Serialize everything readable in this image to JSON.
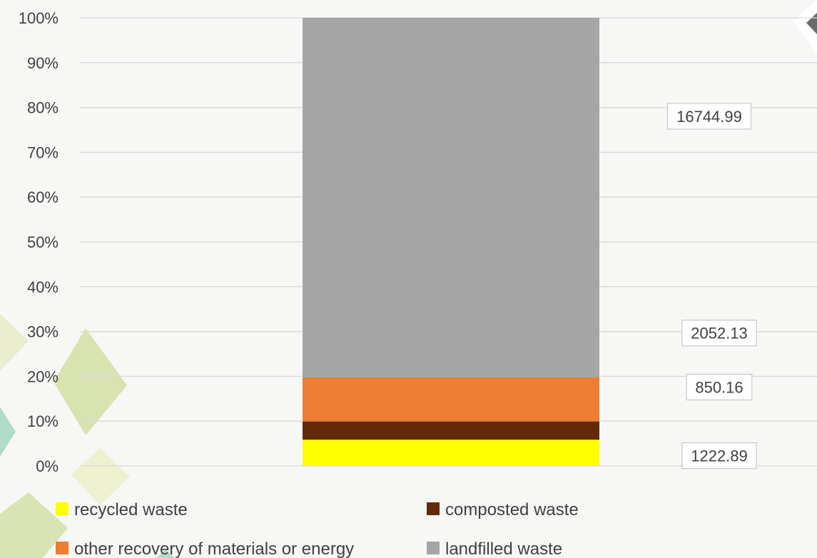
{
  "chart_data": {
    "type": "bar",
    "stacked": "percent",
    "categories": [
      ""
    ],
    "series": [
      {
        "name": "recycled waste",
        "values": [
          1222.89
        ],
        "color": "#ffff00"
      },
      {
        "name": "composted waste",
        "values": [
          850.16
        ],
        "color": "#632a0a"
      },
      {
        "name": "other recovery of materials or energy",
        "values": [
          2052.13
        ],
        "color": "#ed7d31"
      },
      {
        "name": "landfilled waste",
        "values": [
          16744.99
        ],
        "color": "#a5a5a5"
      }
    ],
    "data_labels": [
      "1222.89",
      "850.16",
      "2052.13",
      "16744.99"
    ],
    "y_ticks": [
      "0%",
      "10%",
      "20%",
      "30%",
      "40%",
      "50%",
      "60%",
      "70%",
      "80%",
      "90%",
      "100%"
    ],
    "ylim": [
      0,
      100
    ],
    "grid": true,
    "legend_position": "bottom",
    "title": "",
    "xlabel": "",
    "ylabel": ""
  }
}
